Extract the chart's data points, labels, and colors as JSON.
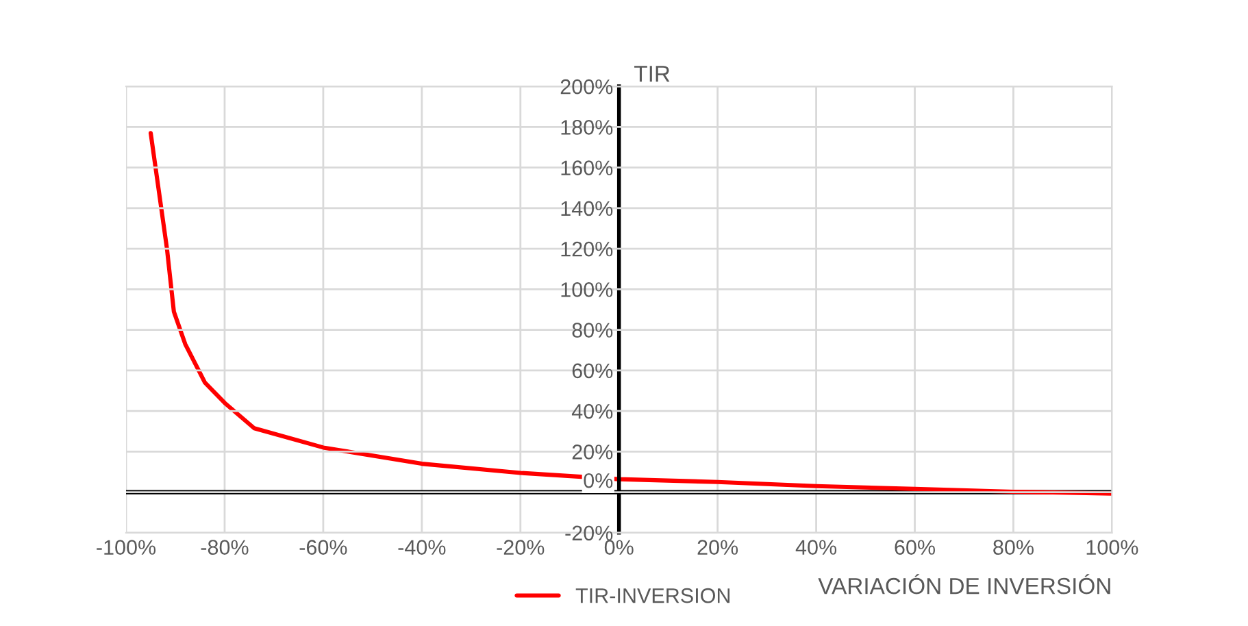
{
  "chart_data": {
    "type": "line",
    "xlabel": "VARIACIÓN DE INVERSIÓN",
    "ylabel": "TIR",
    "x": [
      -95,
      -91.7,
      -90.3,
      -88,
      -84,
      -80,
      -74,
      -60,
      -40,
      -20,
      0,
      20,
      40,
      60,
      80,
      100
    ],
    "series": [
      {
        "name": "TIR-INVERSION",
        "color": "#ff0000",
        "values": [
          177,
          120,
          89,
          73,
          54,
          44,
          31.5,
          22,
          14,
          9.5,
          6.4,
          5,
          3,
          1.6,
          0.2,
          -0.7
        ]
      }
    ],
    "xlim": [
      -100,
      100
    ],
    "xticks": [
      {
        "value": -100,
        "label": "-100%"
      },
      {
        "value": -80,
        "label": "-80%"
      },
      {
        "value": -60,
        "label": "-60%"
      },
      {
        "value": -40,
        "label": "-40%"
      },
      {
        "value": -20,
        "label": "-20%"
      },
      {
        "value": 0,
        "label": "0%"
      },
      {
        "value": 20,
        "label": "20%"
      },
      {
        "value": 40,
        "label": "40%"
      },
      {
        "value": 60,
        "label": "60%"
      },
      {
        "value": 80,
        "label": "80%"
      },
      {
        "value": 100,
        "label": "100%"
      }
    ],
    "ylim": [
      -20,
      200
    ],
    "yticks": [
      {
        "value": -20,
        "label": "-20%"
      },
      {
        "value": 0,
        "label": "0%"
      },
      {
        "value": 20,
        "label": "20%"
      },
      {
        "value": 40,
        "label": "40%"
      },
      {
        "value": 60,
        "label": "60%"
      },
      {
        "value": 80,
        "label": "80%"
      },
      {
        "value": 100,
        "label": "100%"
      },
      {
        "value": 120,
        "label": "120%"
      },
      {
        "value": 140,
        "label": "140%"
      },
      {
        "value": 160,
        "label": "160%"
      },
      {
        "value": 180,
        "label": "180%"
      },
      {
        "value": 200,
        "label": "200%"
      }
    ],
    "grid": true,
    "legend": "bottom",
    "marker": "none",
    "line_style": "solid"
  }
}
